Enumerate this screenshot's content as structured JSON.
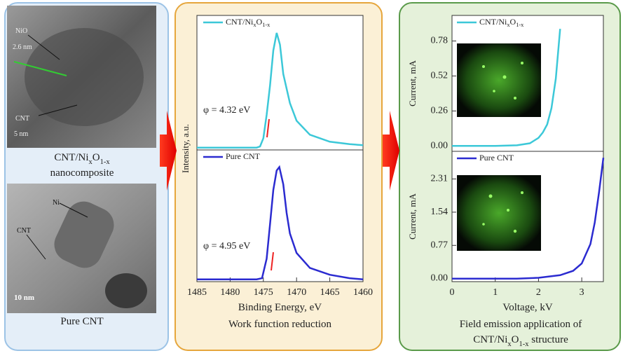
{
  "left_panel": {
    "top_image_labels": [
      "NiO",
      "2.6 nm",
      "CNT",
      "5 nm"
    ],
    "caption": [
      "CNT/NixO1-x",
      "nanocomposite"
    ],
    "bottom_image_labels": [
      "Ni",
      "CNT",
      "10 nm"
    ],
    "bottom_caption": "Pure CNT"
  },
  "chart_data": [
    {
      "type": "line",
      "x_label": "Binding Energy, eV",
      "y_label": "Intensity, a.u.",
      "caption": "Work function reduction",
      "xlim": [
        1485,
        1460
      ],
      "xticks": [
        1485,
        1480,
        1475,
        1470,
        1465,
        1460
      ],
      "panels": [
        {
          "ylim": [
            0,
            1.15
          ],
          "annotation": "φ = 4.32 eV",
          "series": [
            {
              "name": "CNT/NixO1-x",
              "color": "#3cc8d8",
              "x": [
                1485,
                1480,
                1476,
                1475.5,
                1475,
                1474.5,
                1474,
                1473.5,
                1473,
                1472.5,
                1472,
                1471,
                1470,
                1468,
                1465,
                1462,
                1460
              ],
              "values": [
                0.02,
                0.02,
                0.02,
                0.03,
                0.1,
                0.3,
                0.55,
                0.85,
                1.0,
                0.9,
                0.65,
                0.4,
                0.25,
                0.13,
                0.07,
                0.05,
                0.04
              ]
            }
          ]
        },
        {
          "ylim": [
            0,
            1.15
          ],
          "annotation": "φ = 4.95 eV",
          "series": [
            {
              "name": "Pure CNT",
              "color": "#2b2bd0",
              "x": [
                1485,
                1480,
                1476,
                1475.2,
                1474.5,
                1474,
                1473.5,
                1473,
                1472.6,
                1472,
                1471.5,
                1471,
                1470,
                1468,
                1465,
                1462,
                1460
              ],
              "values": [
                0.02,
                0.02,
                0.02,
                0.03,
                0.2,
                0.5,
                0.8,
                0.97,
                1.0,
                0.85,
                0.6,
                0.42,
                0.25,
                0.12,
                0.06,
                0.03,
                0.02
              ]
            }
          ]
        }
      ]
    },
    {
      "type": "line",
      "x_label": "Voltage, kV",
      "y_label": "Current, mA",
      "caption": [
        "Field emission application of",
        "CNT/NixO1-x structure"
      ],
      "xlim": [
        0,
        3.5
      ],
      "xticks": [
        0,
        1,
        2,
        3
      ],
      "panels": [
        {
          "ylim": [
            -0.04,
            0.97
          ],
          "yticks": [
            {
              "value": 0,
              "label": "0.00"
            },
            {
              "value": 0.26,
              "label": "0.26"
            },
            {
              "value": 0.52,
              "label": "0.52"
            },
            {
              "value": 0.78,
              "label": "0.78"
            }
          ],
          "series": [
            {
              "name": "CNT/NixO1-x",
              "color": "#3cc8d8",
              "x": [
                0,
                1,
                1.5,
                1.8,
                2,
                2.1,
                2.2,
                2.3,
                2.4,
                2.5
              ],
              "values": [
                0,
                0,
                0.005,
                0.02,
                0.06,
                0.1,
                0.16,
                0.28,
                0.5,
                0.87
              ]
            }
          ]
        },
        {
          "ylim": [
            -0.07,
            2.95
          ],
          "yticks": [
            {
              "value": 0,
              "label": "0.00"
            },
            {
              "value": 0.77,
              "label": "0.77"
            },
            {
              "value": 1.54,
              "label": "1.54"
            },
            {
              "value": 2.31,
              "label": "2.31"
            }
          ],
          "series": [
            {
              "name": "Pure CNT",
              "color": "#2b2bd0",
              "x": [
                0,
                1.5,
                2,
                2.5,
                2.8,
                3,
                3.2,
                3.3,
                3.4,
                3.5
              ],
              "values": [
                0,
                0,
                0.02,
                0.08,
                0.18,
                0.35,
                0.8,
                1.3,
                2.0,
                2.8
              ]
            }
          ]
        }
      ]
    }
  ]
}
